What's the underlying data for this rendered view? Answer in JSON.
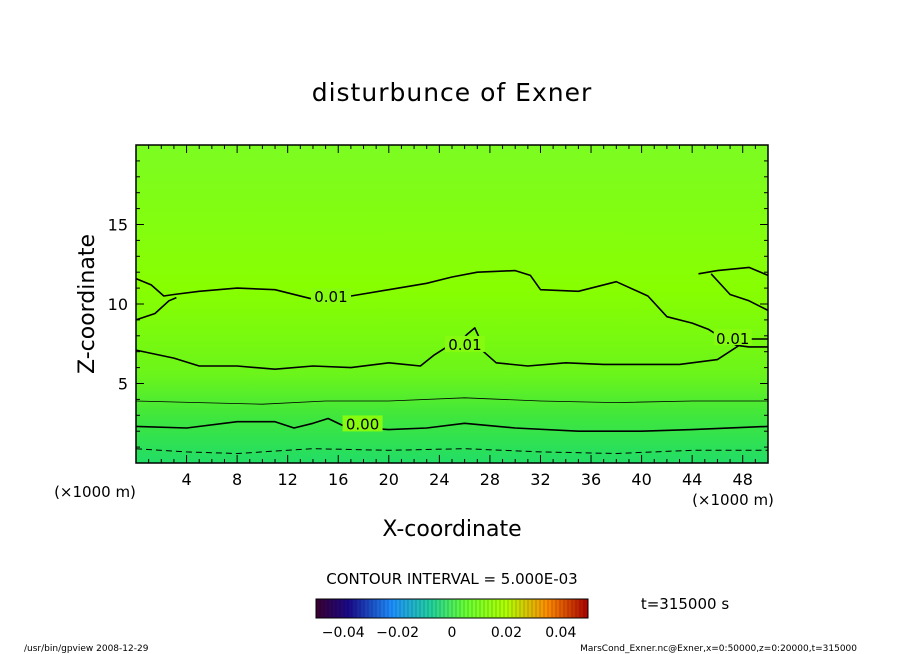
{
  "chart_data": {
    "type": "contour",
    "title": "disturbunce of Exner",
    "xlabel": "X-coordinate",
    "ylabel": "Z-coordinate",
    "x_unit": "(×1000 m)",
    "z_unit": "(×1000 m)",
    "xlim": [
      0,
      50
    ],
    "ylim": [
      0,
      20
    ],
    "x_ticks": [
      4,
      8,
      12,
      16,
      20,
      24,
      28,
      32,
      36,
      40,
      44,
      48
    ],
    "y_ticks": [
      5,
      10,
      15
    ],
    "grid": false,
    "contour_interval_text": "CONTOUR INTERVAL = 5.000E-03",
    "time_text": "t=315000 s",
    "colorbar": {
      "range": [
        -0.05,
        0.05
      ],
      "ticks": [
        -0.04,
        -0.02,
        0,
        0.02,
        0.04
      ],
      "tick_labels": [
        "−0.04",
        "−0.02",
        "0",
        "0.02",
        "0.04"
      ]
    },
    "contours": [
      {
        "label": "0.01",
        "style": "solid",
        "points": [
          [
            0,
            11.6
          ],
          [
            1.2,
            11.2
          ],
          [
            2.2,
            10.5
          ],
          [
            3,
            10.6
          ],
          [
            5,
            10.8
          ],
          [
            8,
            11
          ],
          [
            11,
            10.9
          ],
          [
            14,
            10.3
          ],
          [
            17,
            10.5
          ],
          [
            20,
            10.9
          ],
          [
            23,
            11.3
          ],
          [
            25,
            11.7
          ],
          [
            27,
            12
          ],
          [
            30,
            12.1
          ],
          [
            31.2,
            11.8
          ],
          [
            32,
            10.9
          ],
          [
            35,
            10.8
          ],
          [
            38,
            11.4
          ],
          [
            40.5,
            10.5
          ],
          [
            42,
            9.2
          ],
          [
            44,
            8.8
          ],
          [
            45.3,
            8.4
          ],
          [
            46.5,
            7.8
          ],
          [
            47.5,
            7.4
          ],
          [
            48.5,
            7.3
          ],
          [
            50,
            7.3
          ]
        ]
      },
      {
        "label": "",
        "style": "solid",
        "points": [
          [
            0,
            9
          ],
          [
            1.5,
            9.4
          ],
          [
            2.6,
            10.2
          ],
          [
            3.2,
            10.4
          ]
        ]
      },
      {
        "label": "0.01",
        "style": "solid",
        "points": [
          [
            0,
            7.1
          ],
          [
            3,
            6.6
          ],
          [
            5,
            6.1
          ],
          [
            8,
            6.1
          ],
          [
            11,
            5.9
          ],
          [
            14,
            6.1
          ],
          [
            17,
            6
          ],
          [
            20,
            6.3
          ],
          [
            22.5,
            6.1
          ],
          [
            23.6,
            6.8
          ],
          [
            24.6,
            7.3
          ],
          [
            25.5,
            7.5
          ],
          [
            26.2,
            8.1
          ],
          [
            26.8,
            8.5
          ],
          [
            27.2,
            7.8
          ],
          [
            27.5,
            7
          ],
          [
            28.5,
            6.3
          ],
          [
            31,
            6.1
          ],
          [
            34,
            6.3
          ],
          [
            37,
            6.2
          ],
          [
            40,
            6.2
          ],
          [
            43,
            6.2
          ],
          [
            46,
            6.5
          ],
          [
            48.5,
            7.8
          ],
          [
            50,
            7.8
          ]
        ]
      },
      {
        "label": "",
        "style": "solid",
        "points": [
          [
            44.5,
            11.9
          ],
          [
            46,
            12.1
          ],
          [
            48.5,
            12.3
          ],
          [
            50,
            11.8
          ]
        ]
      },
      {
        "label": "",
        "style": "solid",
        "points": [
          [
            45.5,
            11.9
          ],
          [
            47,
            10.6
          ],
          [
            48.5,
            10.2
          ],
          [
            50,
            9.6
          ]
        ]
      },
      {
        "label": "0.00",
        "style": "solid",
        "points": [
          [
            0,
            2.3
          ],
          [
            4,
            2.2
          ],
          [
            8,
            2.6
          ],
          [
            11,
            2.6
          ],
          [
            12.5,
            2.2
          ],
          [
            14,
            2.5
          ],
          [
            15.2,
            2.8
          ],
          [
            16.5,
            2.3
          ],
          [
            20,
            2.1
          ],
          [
            23,
            2.2
          ],
          [
            26,
            2.5
          ],
          [
            30,
            2.2
          ],
          [
            35,
            2
          ],
          [
            40,
            2
          ],
          [
            44,
            2.1
          ],
          [
            50,
            2.3
          ]
        ]
      },
      {
        "label": "",
        "style": "thin",
        "points": [
          [
            0,
            3.9
          ],
          [
            5,
            3.8
          ],
          [
            10,
            3.7
          ],
          [
            15,
            3.9
          ],
          [
            20,
            3.9
          ],
          [
            26,
            4.1
          ],
          [
            32,
            3.9
          ],
          [
            38,
            3.8
          ],
          [
            44,
            3.9
          ],
          [
            50,
            3.9
          ]
        ]
      },
      {
        "label": "",
        "style": "dashed",
        "points": [
          [
            0,
            0.9
          ],
          [
            4,
            0.7
          ],
          [
            8,
            0.6
          ],
          [
            14,
            0.9
          ],
          [
            20,
            0.8
          ],
          [
            26,
            0.9
          ],
          [
            32,
            0.7
          ],
          [
            38,
            0.6
          ],
          [
            44,
            0.8
          ],
          [
            50,
            0.8
          ]
        ]
      }
    ]
  },
  "footer": {
    "left": "/usr/bin/gpview   2008-12-29",
    "right": "MarsCond_Exner.nc@Exner,x=0:50000,z=0:20000,t=315000"
  },
  "colors": {
    "field_top": "#7cfc22",
    "field_mid": "#88ff00",
    "field_low": "#3ee63e",
    "field_bottom": "#22dd66"
  }
}
